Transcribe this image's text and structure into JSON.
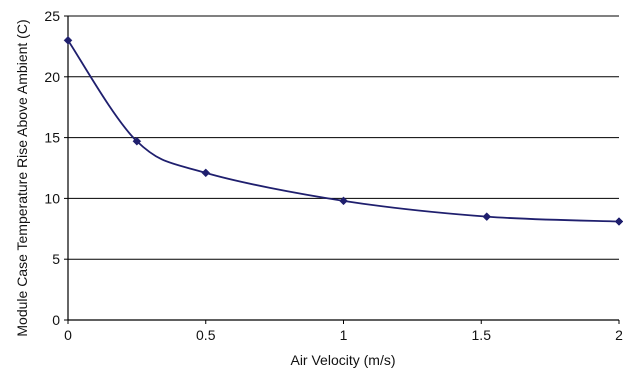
{
  "chart_data": {
    "type": "line",
    "title": "",
    "xlabel": "Air Velocity (m/s)",
    "ylabel": "Module Case Temperature Rise Above Ambient (C)",
    "xlim": [
      0,
      2
    ],
    "ylim": [
      0,
      25
    ],
    "xticks": [
      0,
      0.5,
      1,
      1.5,
      2
    ],
    "xtick_labels": [
      "0",
      "0.5",
      "1",
      "1.5",
      "2"
    ],
    "yticks": [
      0,
      5,
      10,
      15,
      20,
      25
    ],
    "ytick_labels": [
      "0",
      "5",
      "10",
      "15",
      "20",
      "25"
    ],
    "grid": "horizontal",
    "legend": "none",
    "series": [
      {
        "color": "#1f1f6e",
        "marker": "diamond",
        "x": [
          0,
          0.25,
          0.5,
          1.0,
          1.52,
          2.0
        ],
        "y": [
          23.0,
          14.7,
          12.1,
          9.8,
          8.5,
          8.1
        ]
      }
    ]
  }
}
